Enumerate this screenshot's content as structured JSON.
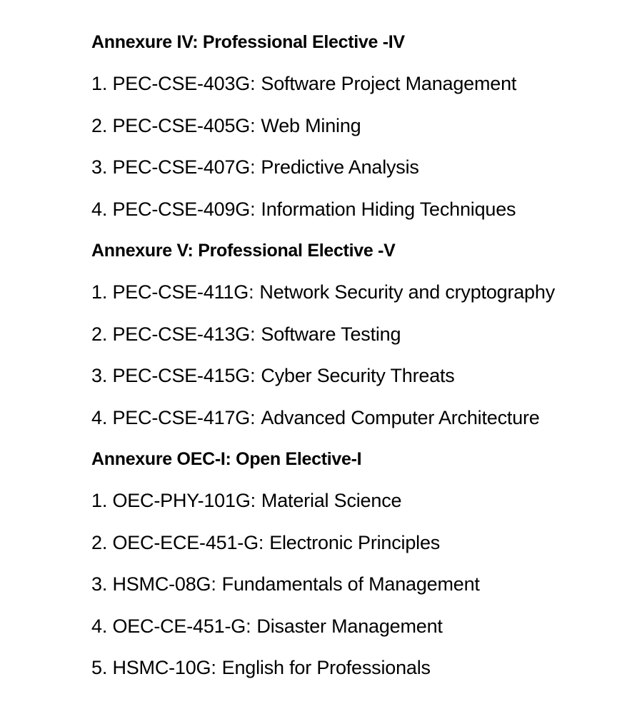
{
  "sections": [
    {
      "heading": "Annexure IV: Professional Elective -IV",
      "items": [
        {
          "num": "1.",
          "code": "PEC-CSE-403G:",
          "name": "Software Project Management"
        },
        {
          "num": "2.",
          "code": "PEC-CSE-405G:",
          "name": "Web Mining"
        },
        {
          "num": "3.",
          "code": "PEC-CSE-407G:",
          "name": "Predictive Analysis"
        },
        {
          "num": "4.",
          "code": "PEC-CSE-409G:",
          "name": "Information Hiding Techniques"
        }
      ]
    },
    {
      "heading": "Annexure V: Professional Elective -V",
      "items": [
        {
          "num": "1.",
          "code": "PEC-CSE-411G:",
          "name": "Network Security and cryptography"
        },
        {
          "num": "2.",
          "code": "PEC-CSE-413G:",
          "name": "Software Testing"
        },
        {
          "num": "3.",
          "code": "PEC-CSE-415G:",
          "name": "Cyber Security Threats"
        },
        {
          "num": "4.",
          "code": "PEC-CSE-417G:",
          "name": "Advanced Computer Architecture"
        }
      ]
    },
    {
      "heading": "Annexure OEC-I: Open Elective-I",
      "items": [
        {
          "num": "1.",
          "code": "OEC-PHY-101G:",
          "name": "Material Science"
        },
        {
          "num": "2.",
          "code": "OEC-ECE-451-G:",
          "name": "Electronic Principles"
        },
        {
          "num": "3.",
          "code": "HSMC-08G:",
          "name": "Fundamentals of Management"
        },
        {
          "num": "4.",
          "code": "OEC-CE-451-G:",
          "name": "Disaster Management"
        },
        {
          "num": "5.",
          "code": "HSMC-10G:",
          "name": "English for Professionals"
        }
      ]
    }
  ]
}
